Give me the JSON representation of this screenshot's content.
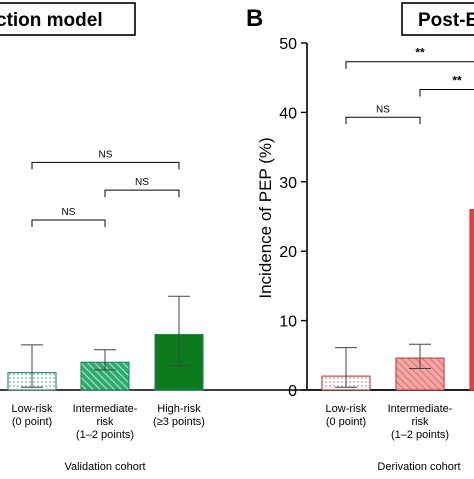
{
  "colors": {
    "low_green": "#9ed8bd",
    "mid_green": "#2eab6e",
    "high_green": "#0b7a1d",
    "low_red": "#f2c2c2",
    "mid_red": "#e0706c",
    "high_red": "#e8403e",
    "axis": "#000000"
  },
  "chart_data": [
    {
      "type": "bar",
      "panel_label": "",
      "title": "ction model",
      "xlabel": "Validation cohort",
      "ylabel": "",
      "ylim": [
        0,
        50
      ],
      "grid": false,
      "categories": [
        "Low-risk\n(0 point)",
        "Intermediate-\nrisk\n(1–2 points)",
        "High-risk\n(≥3 points)"
      ],
      "values": [
        2.5,
        4.0,
        8.0
      ],
      "error_upper": [
        6.5,
        5.8,
        13.5
      ],
      "error_lower": [
        0.4,
        2.9,
        3.5
      ],
      "fills": [
        "dots",
        "hatch",
        "solid"
      ],
      "colors": [
        "#9ed8bd",
        "#2eab6e",
        "#0b7a1d"
      ],
      "annotations": [
        {
          "from": 0,
          "to": 1,
          "label": "NS",
          "y": 24.5
        },
        {
          "from": 1,
          "to": 2,
          "label": "NS",
          "y": 28.8
        },
        {
          "from": 0,
          "to": 2,
          "label": "NS",
          "y": 32.8
        }
      ]
    },
    {
      "type": "bar",
      "panel_label": "B",
      "title": "Post-E",
      "xlabel": "Derivation cohort",
      "ylabel": "Incidence of PEP (%)",
      "ylim": [
        0,
        50
      ],
      "yticks": [
        0,
        10,
        20,
        30,
        40,
        50
      ],
      "grid": false,
      "categories": [
        "Low-risk\n(0 point)",
        "Intermediate-\nrisk\n(1–2 points)",
        "\n(≥"
      ],
      "values": [
        2.0,
        4.6,
        26.0
      ],
      "error_upper": [
        6.1,
        6.6,
        null
      ],
      "error_lower": [
        0.4,
        3.1,
        null
      ],
      "fills": [
        "dots",
        "hatch",
        "solid"
      ],
      "colors": [
        "#f2c2c2",
        "#e0706c",
        "#e8403e"
      ],
      "annotations": [
        {
          "from": 0,
          "to": 1,
          "label": "NS",
          "y": 39.3
        },
        {
          "from": 1,
          "to": 2,
          "label": "**",
          "y": 43.3
        },
        {
          "from": 0,
          "to": 2,
          "label": "**",
          "y": 47.3
        }
      ]
    }
  ]
}
